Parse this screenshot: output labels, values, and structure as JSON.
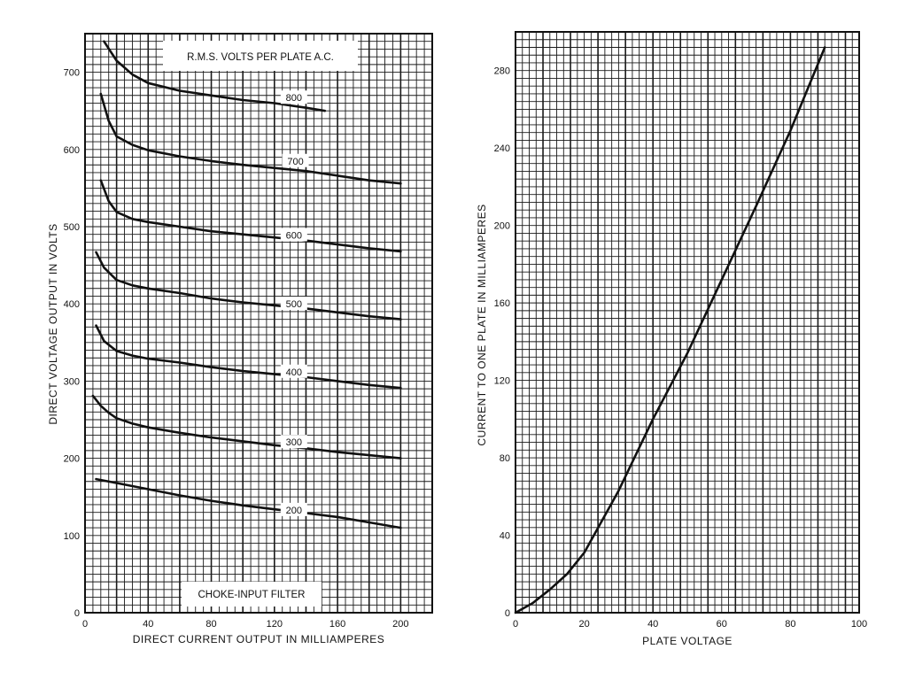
{
  "chart_data": [
    {
      "type": "line",
      "xlabel": "DIRECT CURRENT OUTPUT IN MILLIAMPERES",
      "ylabel": "DIRECT VOLTAGE OUTPUT IN VOLTS",
      "xlim": [
        0,
        220
      ],
      "ylim": [
        0,
        750
      ],
      "x_ticks": [
        0,
        40,
        80,
        120,
        160,
        200
      ],
      "y_ticks": [
        0,
        100,
        200,
        300,
        400,
        500,
        600,
        700
      ],
      "grid": true,
      "legend_title": "R.M.S. VOLTS PER PLATE A.C.",
      "annotation": "CHOKE-INPUT FILTER",
      "series": [
        {
          "name": "800",
          "x": [
            12,
            20,
            30,
            40,
            60,
            80,
            100,
            120,
            140,
            152
          ],
          "y": [
            740,
            715,
            697,
            686,
            676,
            670,
            664,
            660,
            654,
            650
          ]
        },
        {
          "name": "700",
          "x": [
            10,
            15,
            20,
            30,
            40,
            60,
            80,
            100,
            120,
            140,
            160,
            180,
            200
          ],
          "y": [
            672,
            637,
            617,
            606,
            599,
            591,
            585,
            580,
            576,
            572,
            566,
            560,
            556
          ]
        },
        {
          "name": "600",
          "x": [
            10,
            15,
            20,
            30,
            40,
            60,
            80,
            100,
            120,
            140,
            160,
            180,
            200
          ],
          "y": [
            560,
            533,
            519,
            510,
            506,
            500,
            494,
            490,
            486,
            482,
            477,
            472,
            468
          ]
        },
        {
          "name": "500",
          "x": [
            7,
            12,
            20,
            30,
            40,
            60,
            80,
            100,
            120,
            140,
            160,
            180,
            200
          ],
          "y": [
            467,
            447,
            431,
            424,
            420,
            414,
            407,
            402,
            398,
            394,
            389,
            384,
            380
          ]
        },
        {
          "name": "400",
          "x": [
            7,
            12,
            20,
            30,
            40,
            60,
            80,
            100,
            120,
            140,
            160,
            180,
            200
          ],
          "y": [
            372,
            352,
            339,
            333,
            329,
            324,
            318,
            313,
            309,
            305,
            300,
            295,
            291
          ]
        },
        {
          "name": "300",
          "x": [
            5,
            10,
            15,
            20,
            30,
            40,
            60,
            80,
            100,
            120,
            140,
            160,
            180,
            200
          ],
          "y": [
            281,
            268,
            259,
            252,
            245,
            240,
            233,
            227,
            222,
            217,
            213,
            208,
            204,
            200
          ]
        },
        {
          "name": "200",
          "x": [
            7,
            20,
            40,
            60,
            80,
            100,
            120,
            140,
            160,
            180,
            200
          ],
          "y": [
            173,
            168,
            160,
            152,
            145,
            139,
            134,
            129,
            124,
            117,
            110
          ]
        }
      ]
    },
    {
      "type": "line",
      "xlabel": "PLATE VOLTAGE",
      "ylabel": "CURRENT TO ONE PLATE IN MILLIAMPERES",
      "xlim": [
        0,
        100
      ],
      "ylim": [
        0,
        300
      ],
      "x_ticks": [
        0,
        20,
        40,
        60,
        80,
        100
      ],
      "y_ticks": [
        0,
        40,
        80,
        120,
        160,
        200,
        240,
        280
      ],
      "grid": true,
      "series": [
        {
          "x": [
            0,
            5,
            10,
            15,
            20,
            30,
            40,
            50,
            60,
            70,
            80,
            90
          ],
          "y": [
            0,
            5,
            12,
            20,
            31,
            63,
            100,
            134,
            172,
            210,
            249,
            292
          ]
        }
      ]
    }
  ]
}
